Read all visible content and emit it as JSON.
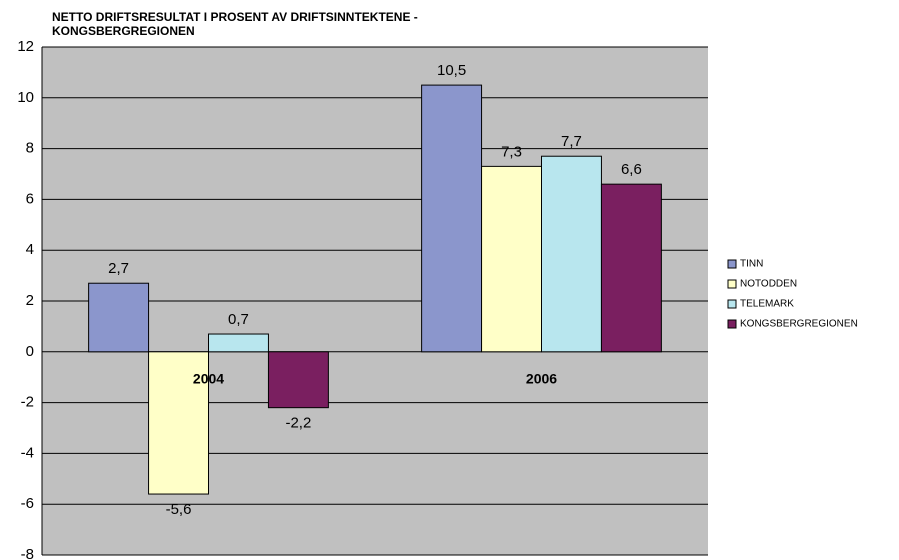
{
  "chart_data": {
    "type": "bar",
    "title": [
      "NETTO DRIFTSRESULTAT I PROSENT AV DRIFTSINNTEKTENE -",
      "KONGSBERGREGIONEN"
    ],
    "categories": [
      "2004",
      "2006"
    ],
    "series": [
      {
        "name": "TINN",
        "color": "#8b96cc",
        "values": [
          2.7,
          10.5
        ],
        "value_labels": [
          "2,7",
          "10,5"
        ]
      },
      {
        "name": "NOTODDEN",
        "color": "#ffffc8",
        "values": [
          -5.6,
          7.3
        ],
        "value_labels": [
          "-5,6",
          "7,3"
        ]
      },
      {
        "name": "TELEMARK",
        "color": "#b8e6ee",
        "values": [
          0.7,
          7.7
        ],
        "value_labels": [
          "0,7",
          "7,7"
        ]
      },
      {
        "name": "KONGSBERGREGIONEN",
        "color": "#7a1f60",
        "values": [
          -2.2,
          6.6
        ],
        "value_labels": [
          "-2,2",
          "6,6"
        ]
      }
    ],
    "ylim": [
      -8,
      12
    ],
    "yticks": [
      -8,
      -6,
      -4,
      -2,
      0,
      2,
      4,
      6,
      8,
      10,
      12
    ],
    "grid": true,
    "legend": "right",
    "background": "#c0c0c0"
  }
}
